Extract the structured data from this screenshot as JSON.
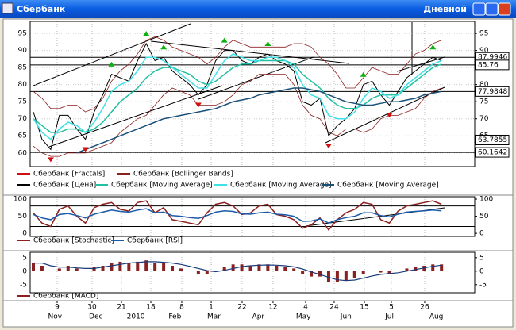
{
  "window": {
    "title": "Сбербанк",
    "mode": "Дневной"
  },
  "x_axis": {
    "days": [
      {
        "value": 2.74,
        "label": "9"
      },
      {
        "value": 6.76,
        "label": "30"
      },
      {
        "value": 10.15,
        "label": "21"
      },
      {
        "value": 13.53,
        "label": "18"
      },
      {
        "value": 17.09,
        "label": "8"
      },
      {
        "value": 20.48,
        "label": "1"
      },
      {
        "value": 24.04,
        "label": "22"
      },
      {
        "value": 27.6,
        "label": "12"
      },
      {
        "value": 31.35,
        "label": "4"
      },
      {
        "value": 34.64,
        "label": "24"
      },
      {
        "value": 38.12,
        "label": "15"
      },
      {
        "value": 41.22,
        "label": "5"
      },
      {
        "value": 45.06,
        "label": "26"
      }
    ],
    "months": [
      {
        "value": 2.5,
        "label": "Nov"
      },
      {
        "value": 7.2,
        "label": "Dec"
      },
      {
        "value": 11.8,
        "label": "2010"
      },
      {
        "value": 16.3,
        "label": "Feb"
      },
      {
        "value": 20.8,
        "label": "Mar"
      },
      {
        "value": 25.9,
        "label": "Apr"
      },
      {
        "value": 31.1,
        "label": "May"
      },
      {
        "value": 36,
        "label": "Jun"
      },
      {
        "value": 41,
        "label": "Jul"
      },
      {
        "value": 46.4,
        "label": "Aug"
      }
    ]
  },
  "chart_data": [
    {
      "type": "line",
      "ylim": [
        56,
        98.5
      ],
      "yticks": [
        95,
        90,
        85,
        80,
        75,
        70,
        65,
        60
      ],
      "grid": true,
      "series": [
        {
          "name": "Сбербанк [Цена]",
          "color": "#000000",
          "values": [
            72,
            64,
            61,
            71,
            71,
            67,
            64,
            72,
            77,
            83,
            82,
            81,
            87,
            92,
            87,
            88,
            84,
            82,
            80,
            77,
            80,
            87,
            90,
            90,
            87,
            86,
            88,
            89,
            87,
            86,
            84,
            75,
            74,
            76,
            65,
            68,
            70,
            73,
            80,
            81,
            77,
            74,
            78,
            82,
            84,
            86,
            88,
            87
          ]
        },
        {
          "name": "Сбербанк [Moving Average]",
          "color": "#20c0a0",
          "values": [
            70,
            68,
            66,
            66,
            67,
            67,
            66,
            67,
            69,
            72,
            75,
            77,
            79,
            82,
            84,
            85,
            85,
            84,
            83,
            81,
            80,
            81,
            83,
            85,
            86,
            86,
            87,
            87,
            87,
            87,
            86,
            83,
            81,
            79,
            76,
            74,
            73,
            73,
            74,
            76,
            77,
            77,
            77,
            79,
            81,
            83,
            85,
            86
          ]
        },
        {
          "name": "Сбербанк [Moving Average]",
          "color": "#40e0e8",
          "values": [
            70,
            66,
            64,
            67,
            69,
            68,
            66,
            69,
            73,
            78,
            80,
            81,
            84,
            88,
            88,
            87,
            85,
            83,
            81,
            79,
            79,
            83,
            87,
            89,
            88,
            87,
            87,
            88,
            88,
            87,
            85,
            80,
            77,
            76,
            71,
            70,
            70,
            72,
            76,
            79,
            78,
            76,
            77,
            80,
            82,
            84,
            86,
            87
          ]
        },
        {
          "name": "Сбербанк [Moving Average]",
          "color": "#1a4f78",
          "values": [
            null,
            null,
            null,
            null,
            null,
            60,
            61,
            62,
            63,
            64,
            65,
            66,
            67,
            68,
            69,
            70,
            70.5,
            71,
            71.5,
            72,
            72.5,
            73,
            74,
            75,
            75.5,
            76,
            77,
            77.5,
            78,
            78.5,
            79,
            79,
            78.5,
            78,
            77,
            76,
            75,
            74.5,
            74,
            74,
            74.5,
            75,
            75,
            75.5,
            76,
            77,
            77.5,
            78
          ]
        }
      ],
      "bollinger": {
        "name": "Сбербанк [Bollinger Bands]",
        "color": "#8b2020",
        "upper": [
          78,
          76,
          73,
          73,
          74,
          74,
          72,
          73,
          76,
          81,
          84,
          86,
          89,
          93,
          94,
          93,
          91,
          90,
          89,
          88,
          86,
          88,
          91,
          93,
          92,
          91,
          91,
          91,
          91,
          91,
          92,
          92,
          91,
          88,
          86,
          83,
          79,
          79,
          82,
          85,
          84,
          83,
          83,
          86,
          89,
          90,
          92,
          93
        ],
        "lower": [
          62,
          60,
          59,
          59,
          60,
          60,
          60,
          61,
          62,
          63,
          66,
          68,
          70,
          71,
          74,
          77,
          79,
          78,
          77,
          74,
          74,
          74,
          75,
          77,
          80,
          81,
          83,
          83,
          83,
          83,
          80,
          74,
          71,
          70,
          66,
          65,
          67,
          67,
          66,
          67,
          70,
          71,
          71,
          72,
          73,
          76,
          78,
          79
        ]
      },
      "fractals": {
        "name": "Сбербанк [Fractals]",
        "color": "#d01010",
        "up_color": "#10b010",
        "up_x": [
          9,
          13,
          15,
          22,
          27,
          38,
          46
        ],
        "up_values": [
          86,
          95,
          91,
          93,
          92,
          83,
          91
        ],
        "down_x": [
          2,
          6,
          19,
          34,
          41
        ],
        "down_values": [
          58,
          61,
          74,
          62,
          71
        ]
      },
      "levels": [
        {
          "value": 87.9946,
          "label": "87.9946"
        },
        {
          "value": 85.76,
          "label": "85.76"
        },
        {
          "value": 77.9848,
          "label": "77.9848"
        },
        {
          "value": 63.7855,
          "label": "63.7855"
        },
        {
          "value": 60.1642,
          "label": "60.1642"
        }
      ]
    },
    {
      "type": "line",
      "ylim": [
        -9,
        107
      ],
      "yticks": [
        100,
        50,
        0
      ],
      "levels": [
        80,
        20
      ],
      "series": [
        {
          "name": "Сбербанк [Stochastic]",
          "color": "#8b2020",
          "values": [
            60,
            30,
            20,
            70,
            80,
            50,
            30,
            75,
            85,
            90,
            70,
            65,
            90,
            95,
            60,
            75,
            40,
            35,
            30,
            25,
            60,
            85,
            90,
            80,
            55,
            60,
            80,
            85,
            55,
            50,
            40,
            15,
            25,
            45,
            10,
            40,
            60,
            70,
            90,
            85,
            40,
            30,
            65,
            80,
            85,
            90,
            95,
            85
          ]
        },
        {
          "name": "Сбербанк [RSI]",
          "color": "#1a5aa8",
          "values": [
            55,
            45,
            40,
            55,
            58,
            52,
            45,
            56,
            62,
            68,
            64,
            62,
            68,
            72,
            60,
            62,
            52,
            50,
            46,
            44,
            52,
            62,
            66,
            64,
            57,
            56,
            60,
            62,
            56,
            54,
            50,
            35,
            36,
            42,
            30,
            40,
            46,
            50,
            60,
            60,
            52,
            48,
            56,
            62,
            64,
            66,
            68,
            66
          ]
        }
      ]
    },
    {
      "type": "macd",
      "ylim": [
        -8,
        7
      ],
      "yticks": [
        5,
        0,
        -5
      ],
      "series": [
        {
          "name": "Сбербанк [MACD]",
          "color": "#8b2020",
          "values": [
            3,
            2,
            0,
            1,
            2,
            1,
            0,
            1.5,
            2,
            3,
            3.5,
            3,
            3.5,
            4,
            3,
            3,
            2,
            1,
            0,
            -1,
            -1,
            0,
            1.5,
            2.5,
            2.5,
            2,
            2.5,
            2.5,
            2,
            1.5,
            1,
            -1,
            -2,
            -2,
            -4,
            -4,
            -3.5,
            -2.5,
            -1,
            0,
            -0.5,
            -1,
            0,
            1,
            1.5,
            2,
            2.5,
            2.5
          ]
        },
        {
          "color": "#1a3a78",
          "values": [
            3,
            3,
            2,
            1.5,
            1.5,
            1.2,
            1,
            1,
            1.5,
            2,
            2.5,
            3,
            3.2,
            3.5,
            3.5,
            3.3,
            3,
            2.5,
            1.8,
            1,
            0.2,
            -0.2,
            0.3,
            1,
            1.7,
            2,
            2.2,
            2.3,
            2.2,
            2,
            1.6,
            0.8,
            -0.3,
            -1.2,
            -2.3,
            -3.2,
            -3.5,
            -3.3,
            -2.6,
            -1.8,
            -1.2,
            -0.9,
            -0.6,
            0,
            0.6,
            1.2,
            1.8,
            2.2
          ]
        }
      ]
    }
  ]
}
